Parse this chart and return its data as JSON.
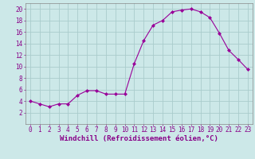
{
  "hours": [
    0,
    1,
    2,
    3,
    4,
    5,
    6,
    7,
    8,
    9,
    10,
    11,
    12,
    13,
    14,
    15,
    16,
    17,
    18,
    19,
    20,
    21,
    22,
    23
  ],
  "values": [
    4.0,
    3.5,
    3.0,
    3.5,
    3.5,
    5.0,
    5.8,
    5.8,
    5.2,
    5.2,
    5.2,
    10.5,
    14.5,
    17.2,
    18.0,
    19.5,
    19.8,
    20.0,
    19.5,
    18.5,
    15.8,
    12.8,
    11.2,
    9.5
  ],
  "line_color": "#990099",
  "marker": "D",
  "marker_size": 2.0,
  "bg_color": "#cce8e8",
  "grid_color": "#aacccc",
  "xlabel": "Windchill (Refroidissement éolien,°C)",
  "xlim": [
    -0.5,
    23.5
  ],
  "ylim": [
    0,
    21
  ],
  "yticks": [
    2,
    4,
    6,
    8,
    10,
    12,
    14,
    16,
    18,
    20
  ],
  "xticks": [
    0,
    1,
    2,
    3,
    4,
    5,
    6,
    7,
    8,
    9,
    10,
    11,
    12,
    13,
    14,
    15,
    16,
    17,
    18,
    19,
    20,
    21,
    22,
    23
  ],
  "tick_color": "#880088",
  "label_fontsize": 5.5,
  "xlabel_fontsize": 6.5
}
